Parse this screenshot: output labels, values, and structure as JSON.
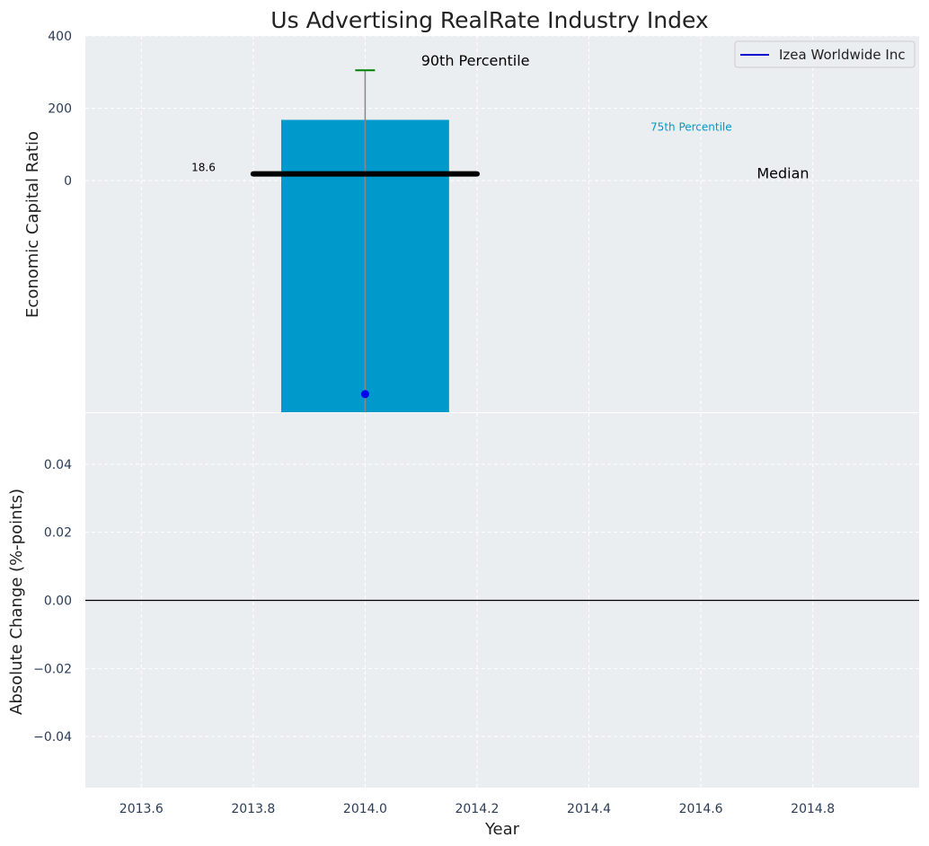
{
  "chart_data": {
    "type": "bar",
    "title": "Us Advertising RealRate Industry Index",
    "xlabel": "Year",
    "grid": true,
    "x_ticks": [
      "2013.6",
      "2013.8",
      "2014.0",
      "2014.2",
      "2014.4",
      "2014.6",
      "2014.8"
    ],
    "xlim": [
      2013.5,
      2014.99
    ],
    "top_panel": {
      "ylabel": "Economic Capital Ratio",
      "ylim": [
        -640,
        400
      ],
      "y_ticks": [
        "0",
        "200",
        "400"
      ],
      "bar": {
        "x": 2014.0,
        "width": 0.3,
        "bottom": -640,
        "top": 168,
        "color": "#0099cc"
      },
      "whisker": {
        "x": 2014.0,
        "low": -640,
        "high": 305,
        "color": "#888888",
        "cap_color": "#008000"
      },
      "median": {
        "x_start": 2013.8,
        "x_end": 2014.2,
        "value": 18.6,
        "label": "18.6",
        "color": "#000000"
      },
      "company_point": {
        "x": 2014.0,
        "y": -590,
        "color": "#0000ee"
      },
      "annotations": [
        {
          "text": "90th Percentile",
          "x": 2014.1,
          "y": 330,
          "color": "#000000"
        },
        {
          "text": "75th Percentile",
          "x": 2014.51,
          "y": 150,
          "color": "#0099cc"
        },
        {
          "text": "Median",
          "x": 2014.7,
          "y": 18.6,
          "color": "#000000"
        }
      ],
      "legend": {
        "position": "top-right",
        "entries": [
          {
            "name": "Izea Worldwide Inc",
            "color": "#0000cc"
          }
        ]
      }
    },
    "bottom_panel": {
      "ylabel": "Absolute Change (%-points)",
      "ylim": [
        -0.055,
        0.055
      ],
      "y_ticks": [
        "0.04",
        "0.02",
        "0.00",
        "−0.02",
        "−0.04"
      ],
      "y_tick_values": [
        0.04,
        0.02,
        0.0,
        -0.02,
        -0.04
      ],
      "series": [
        {
          "x": [
            2014.0
          ],
          "y": [
            0.0
          ]
        }
      ],
      "zero_line": true
    }
  },
  "colors": {
    "plot_bg": "#eaeef0",
    "grid": "#ffffff",
    "tick_text": "#2b3d56"
  }
}
